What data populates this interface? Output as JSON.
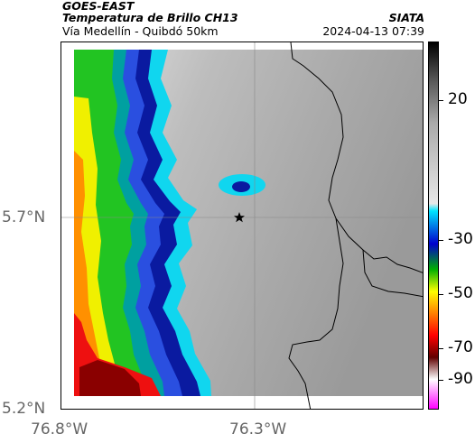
{
  "header": {
    "satellite": "GOES-EAST",
    "product": "Temperatura de Brillo CH13",
    "region": "Vía Medellín - Quibdó 50km",
    "org": "SIATA",
    "timestamp": "2024-04-13 07:39"
  },
  "map": {
    "lat_labels": [
      "5.7°N",
      "5.2°N"
    ],
    "lon_labels": [
      "76.8°W",
      "76.3°W"
    ],
    "marker": "star-marker"
  },
  "colorbar": {
    "labels": [
      "20",
      "-30",
      "-50",
      "-70",
      "-90"
    ],
    "colors": [
      "#000000",
      "#555555",
      "#aaaaaa",
      "#e8e8e8",
      "#00e5ff",
      "#0000cc",
      "#00b000",
      "#ffff00",
      "#ff8000",
      "#ff0000",
      "#600000",
      "#ffffff",
      "#ff00ff"
    ]
  }
}
